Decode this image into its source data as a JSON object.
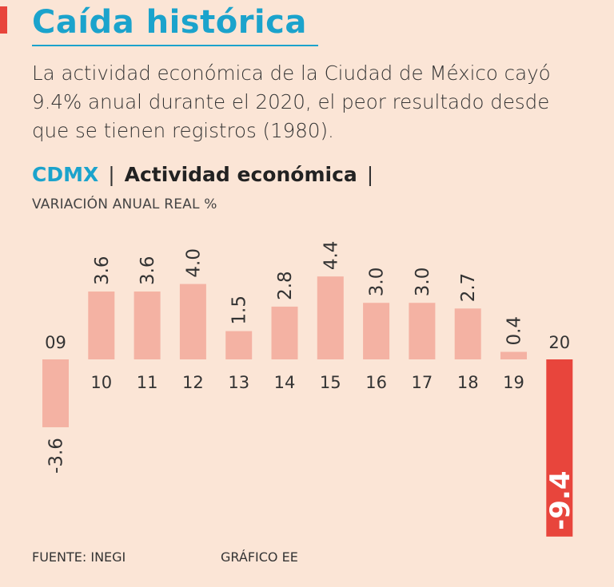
{
  "header": {
    "title": "Caída histórica",
    "subtitle": "La actividad económica de la Ciudad de México cayó 9.4% anual durante el 2020, el peor resultado desde que se tienen registros (1980)."
  },
  "chart_heading": {
    "geo": "CDMX",
    "separator": "|",
    "name": "Actividad económica",
    "unit": "VARIACIÓN ANUAL REAL %"
  },
  "footer": {
    "source": "FUENTE: INEGI",
    "credit": "GRÁFICO EE"
  },
  "colors": {
    "background": "#fbe5d6",
    "accent": "#1ba3cc",
    "bar": "#f4b2a3",
    "highlight_bar": "#e8453c",
    "highlight_text": "#ffffff"
  },
  "chart_data": {
    "type": "bar",
    "title": "Actividad económica",
    "ylabel": "VARIACIÓN ANUAL REAL %",
    "xlabel": "",
    "categories": [
      "09",
      "10",
      "11",
      "12",
      "13",
      "14",
      "15",
      "16",
      "17",
      "18",
      "19",
      "20"
    ],
    "values": [
      -3.6,
      3.6,
      3.6,
      4.0,
      1.5,
      2.8,
      4.4,
      3.0,
      3.0,
      2.7,
      0.4,
      -9.4
    ],
    "value_labels": [
      "-3.6",
      "3.6",
      "3.6",
      "4.0",
      "1.5",
      "2.8",
      "4.4",
      "3.0",
      "3.0",
      "2.7",
      "0.4",
      "-9.4"
    ],
    "highlight_category": "20",
    "grid": false
  }
}
